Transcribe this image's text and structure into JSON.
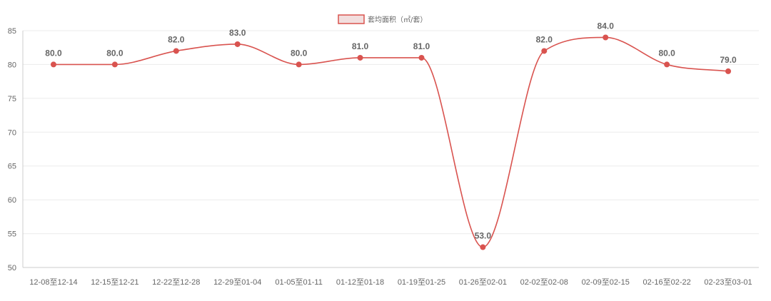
{
  "chart_data": {
    "type": "line",
    "legend": {
      "label": "套均面积（㎡/套）",
      "position": "top-center"
    },
    "categories": [
      "12-08至12-14",
      "12-15至12-21",
      "12-22至12-28",
      "12-29至01-04",
      "01-05至01-11",
      "01-12至01-18",
      "01-19至01-25",
      "01-26至02-01",
      "02-02至02-08",
      "02-09至02-15",
      "02-16至02-22",
      "02-23至03-01"
    ],
    "series": [
      {
        "name": "套均面积（㎡/套）",
        "values": [
          80.0,
          80.0,
          82.0,
          83.0,
          80.0,
          81.0,
          81.0,
          53.0,
          82.0,
          84.0,
          80.0,
          79.0
        ],
        "value_labels": [
          "80.0",
          "80.0",
          "82.0",
          "83.0",
          "80.0",
          "81.0",
          "81.0",
          "53.0",
          "82.0",
          "84.0",
          "80.0",
          "79.0"
        ]
      }
    ],
    "ylim": [
      50,
      85
    ],
    "yticks": [
      "50",
      "55",
      "60",
      "65",
      "70",
      "75",
      "80",
      "85"
    ],
    "grid": true,
    "colors": {
      "line": "#d9534f",
      "legend_fill": "#f2dede",
      "grid": "#ebebeb",
      "axis": "#cccccc",
      "text": "#666666"
    }
  }
}
